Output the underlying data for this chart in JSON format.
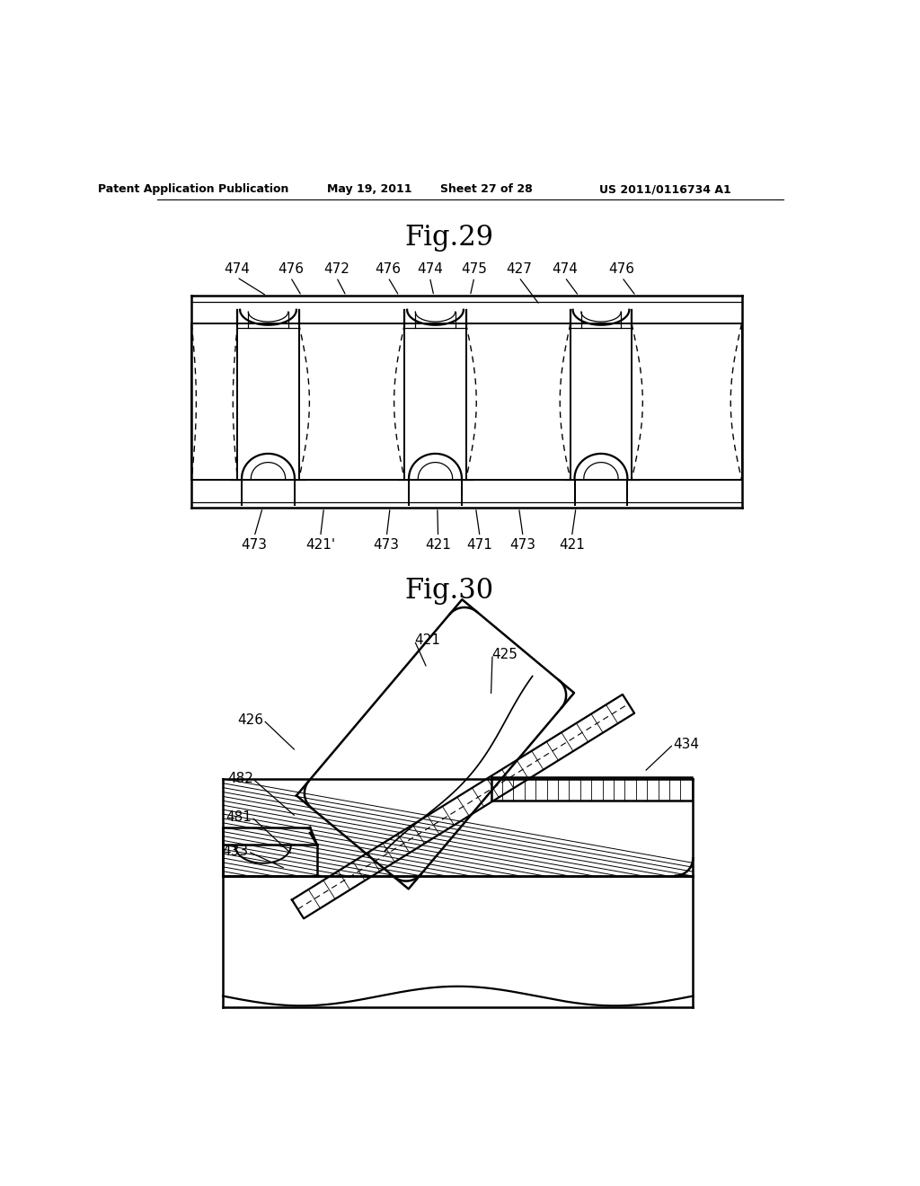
{
  "bg_color": "#ffffff",
  "text_color": "#000000",
  "line_color": "#000000",
  "header_text": "Patent Application Publication",
  "header_date": "May 19, 2011",
  "header_sheet": "Sheet 27 of 28",
  "header_patent": "US 2011/0116734 A1",
  "fig29_title": "Fig.29",
  "fig30_title": "Fig.30"
}
